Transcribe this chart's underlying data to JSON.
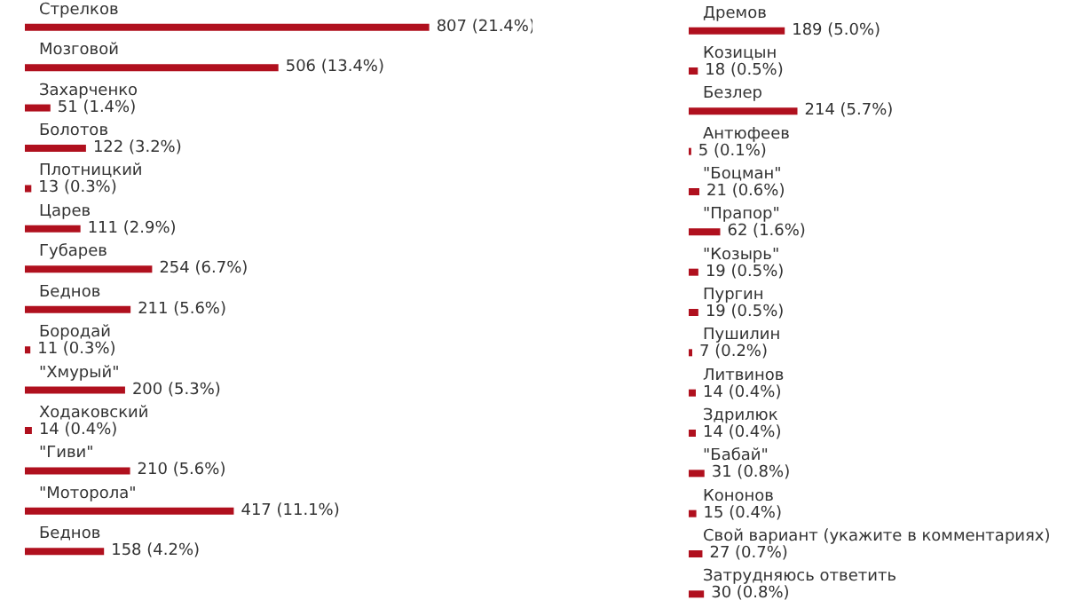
{
  "chart_data": [
    {
      "type": "bar",
      "orientation": "horizontal",
      "color": "#b0101e",
      "categories": [
        "Стрелков",
        "Мозговой",
        "Захарченко",
        "Болотов",
        "Плотницкий",
        "Царев",
        "Губарев",
        "Беднов",
        "Бородай",
        "\"Хмурый\"",
        "Ходаковский",
        "\"Гиви\"",
        "\"Моторола\"",
        "Беднов"
      ],
      "values": [
        807,
        506,
        51,
        122,
        13,
        111,
        254,
        211,
        11,
        200,
        14,
        210,
        417,
        158
      ],
      "value_labels": [
        "807 (21.4%)",
        "506 (13.4%)",
        "51 (1.4%)",
        "122 (3.2%)",
        "13 (0.3%)",
        "111 (2.9%)",
        "254 (6.7%)",
        "211 (5.6%)",
        "11 (0.3%)",
        "200 (5.3%)",
        "14 (0.4%)",
        "210 (5.6%)",
        "417 (11.1%)",
        "158 (4.2%)"
      ]
    },
    {
      "type": "bar",
      "orientation": "horizontal",
      "color": "#b0101e",
      "categories": [
        "Дремов",
        "Козицын",
        "Безлер",
        "Антюфеев",
        "\"Боцман\"",
        "\"Прапор\"",
        "\"Козырь\"",
        "Пургин",
        "Пушилин",
        "Литвинов",
        "Здрилюк",
        "\"Бабай\"",
        "Кононов",
        "Свой вариант (укажите в комментариях)",
        "Затрудняюсь ответить"
      ],
      "values": [
        189,
        18,
        214,
        5,
        21,
        62,
        19,
        19,
        7,
        14,
        14,
        31,
        15,
        27,
        30
      ],
      "value_labels": [
        "189 (5.0%)",
        "18 (0.5%)",
        "214 (5.7%)",
        "5 (0.1%)",
        "21 (0.6%)",
        "62 (1.6%)",
        "19 (0.5%)",
        "19 (0.5%)",
        "7 (0.2%)",
        "14 (0.4%)",
        "14 (0.4%)",
        "31 (0.8%)",
        "15 (0.4%)",
        "27 (0.7%)",
        "30 (0.8%)"
      ]
    }
  ]
}
